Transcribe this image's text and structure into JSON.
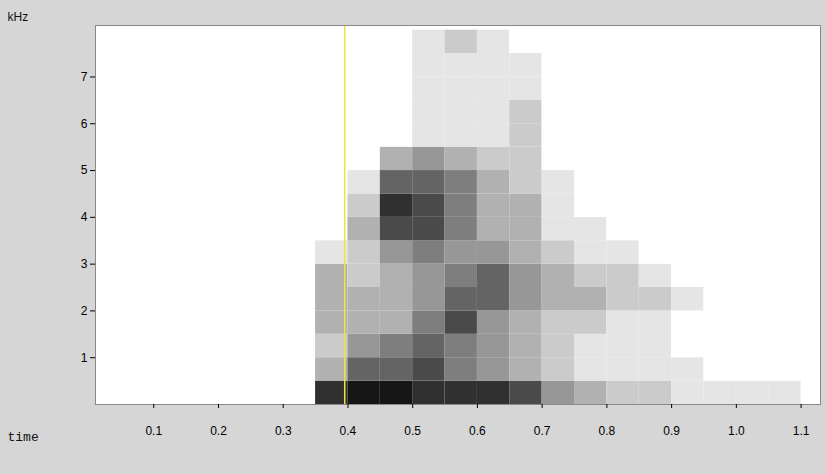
{
  "chart_data": {
    "type": "spectrogram",
    "y_label": "kHz",
    "x_label": "time",
    "xlim": [
      0.01,
      1.13
    ],
    "xticks": [
      0.1,
      0.2,
      0.3,
      0.4,
      0.5,
      0.6,
      0.7,
      0.8,
      0.9,
      {
        "value": 1,
        "label": "1.0"
      },
      1.1
    ],
    "ylim": [
      0,
      8.1
    ],
    "yticks": [
      1,
      2,
      3,
      4,
      5,
      6,
      7
    ],
    "time_edges": [
      0.3,
      0.35,
      0.4,
      0.45,
      0.5,
      0.55,
      0.6,
      0.65,
      0.7,
      0.75,
      0.8,
      0.85,
      0.9,
      0.95,
      1.0,
      1.05,
      1.1
    ],
    "freq_edges": [
      0,
      0.5,
      1,
      1.5,
      2,
      2.5,
      3,
      3.5,
      4,
      4.5,
      5,
      5.5,
      6,
      6.5,
      7,
      7.5,
      8
    ],
    "intensity_range": [
      0,
      9
    ],
    "intensity": [
      [
        0,
        8,
        9,
        9,
        8,
        8,
        8,
        7,
        4,
        3,
        2,
        2,
        1,
        1,
        1,
        1
      ],
      [
        0,
        3,
        6,
        6,
        7,
        5,
        4,
        3,
        2,
        1,
        1,
        1,
        1,
        0,
        0,
        0
      ],
      [
        0,
        2,
        4,
        5,
        6,
        5,
        4,
        3,
        2,
        1,
        1,
        1,
        0,
        0,
        0,
        0
      ],
      [
        0,
        3,
        3,
        3,
        5,
        7,
        4,
        3,
        2,
        2,
        1,
        1,
        0,
        0,
        0,
        0
      ],
      [
        0,
        3,
        3,
        3,
        4,
        6,
        6,
        4,
        3,
        3,
        2,
        2,
        1,
        0,
        0,
        0
      ],
      [
        0,
        3,
        2,
        3,
        4,
        5,
        6,
        4,
        3,
        2,
        2,
        1,
        0,
        0,
        0,
        0
      ],
      [
        0,
        1,
        2,
        4,
        5,
        4,
        4,
        3,
        2,
        1,
        1,
        0,
        0,
        0,
        0,
        0
      ],
      [
        0,
        0,
        3,
        7,
        7,
        5,
        3,
        3,
        1,
        1,
        0,
        0,
        0,
        0,
        0,
        0
      ],
      [
        0,
        0,
        2,
        8,
        7,
        5,
        3,
        3,
        1,
        0,
        0,
        0,
        0,
        0,
        0,
        0
      ],
      [
        0,
        0,
        1,
        6,
        6,
        5,
        3,
        2,
        1,
        0,
        0,
        0,
        0,
        0,
        0,
        0
      ],
      [
        0,
        0,
        0,
        3,
        4,
        3,
        2,
        2,
        0,
        0,
        0,
        0,
        0,
        0,
        0,
        0
      ],
      [
        0,
        0,
        0,
        0,
        1,
        1,
        1,
        2,
        0,
        0,
        0,
        0,
        0,
        0,
        0,
        0
      ],
      [
        0,
        0,
        0,
        0,
        1,
        1,
        1,
        2,
        0,
        0,
        0,
        0,
        0,
        0,
        0,
        0
      ],
      [
        0,
        0,
        0,
        0,
        1,
        1,
        1,
        1,
        0,
        0,
        0,
        0,
        0,
        0,
        0,
        0
      ],
      [
        0,
        0,
        0,
        0,
        1,
        1,
        1,
        1,
        0,
        0,
        0,
        0,
        0,
        0,
        0,
        0
      ],
      [
        0,
        0,
        0,
        0,
        1,
        2,
        1,
        0,
        0,
        0,
        0,
        0,
        0,
        0,
        0,
        0
      ]
    ],
    "vertical_line": {
      "x": 0.395,
      "color": "#f2e33a"
    }
  }
}
